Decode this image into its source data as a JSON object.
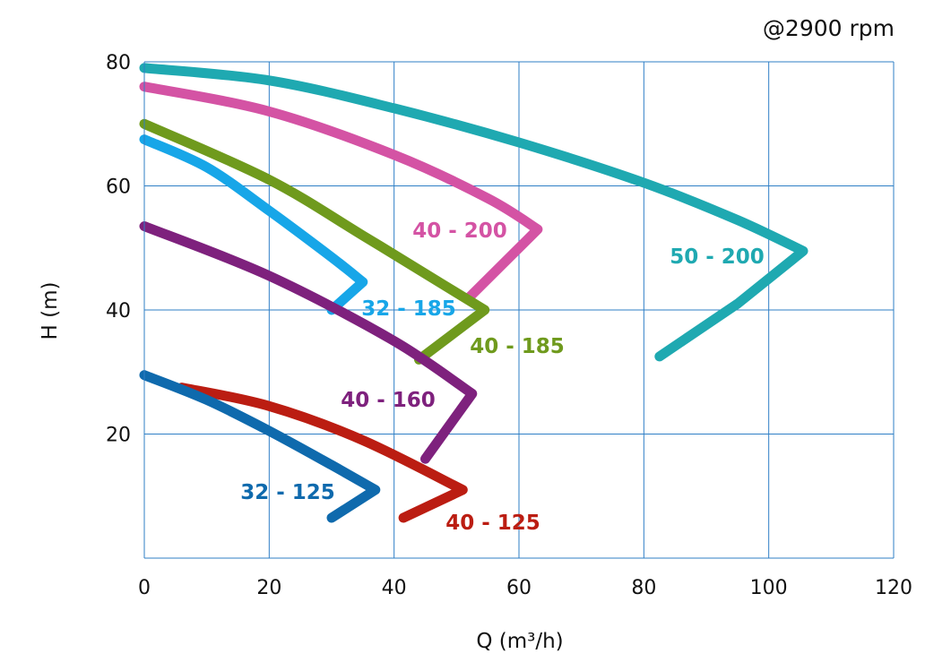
{
  "chart_data": {
    "type": "line",
    "title": "",
    "annotation": "@2900 rpm",
    "xlabel": "Q (m³/h)",
    "ylabel": "H (m)",
    "xlim": [
      0,
      120
    ],
    "ylim": [
      0,
      80
    ],
    "xticks": [
      0,
      20,
      40,
      60,
      80,
      100,
      120
    ],
    "yticks": [
      20,
      40,
      60,
      80
    ],
    "grid": true,
    "series": [
      {
        "name": "50 - 200",
        "color": "#1fa9b1",
        "points": [
          [
            0,
            79
          ],
          [
            20,
            77
          ],
          [
            40,
            72.5
          ],
          [
            60,
            67
          ],
          [
            80,
            60.5
          ],
          [
            95,
            54.5
          ],
          [
            105.5,
            49.5
          ],
          [
            95,
            41
          ],
          [
            82.5,
            32.5
          ]
        ]
      },
      {
        "name": "40 - 200",
        "color": "#d453a4",
        "points": [
          [
            0,
            76
          ],
          [
            20,
            72
          ],
          [
            40,
            65
          ],
          [
            55,
            58
          ],
          [
            63,
            53
          ],
          [
            52,
            42
          ]
        ]
      },
      {
        "name": "40 - 185",
        "color": "#6f9a1d",
        "points": [
          [
            0,
            70
          ],
          [
            20,
            61
          ],
          [
            35,
            52
          ],
          [
            48,
            44
          ],
          [
            54.5,
            40
          ],
          [
            44,
            32
          ]
        ]
      },
      {
        "name": "32 - 185",
        "color": "#17a6e8",
        "points": [
          [
            0,
            67.5
          ],
          [
            10,
            63
          ],
          [
            20,
            56
          ],
          [
            30,
            48.5
          ],
          [
            35,
            44.5
          ],
          [
            30,
            40
          ]
        ]
      },
      {
        "name": "40 - 160",
        "color": "#7e217d",
        "points": [
          [
            0,
            53.5
          ],
          [
            20,
            45.5
          ],
          [
            40,
            35
          ],
          [
            52.5,
            26.5
          ],
          [
            45,
            16
          ]
        ]
      },
      {
        "name": "40 - 125",
        "color": "#bb1d12",
        "points": [
          [
            6,
            27.5
          ],
          [
            20,
            24.5
          ],
          [
            35,
            19
          ],
          [
            51,
            11
          ],
          [
            41.5,
            6.5
          ]
        ]
      },
      {
        "name": "32 - 125",
        "color": "#0f6aad",
        "points": [
          [
            0,
            29.5
          ],
          [
            10,
            25.5
          ],
          [
            20,
            20.5
          ],
          [
            30,
            15
          ],
          [
            37,
            11
          ],
          [
            30,
            6.5
          ]
        ]
      }
    ]
  }
}
